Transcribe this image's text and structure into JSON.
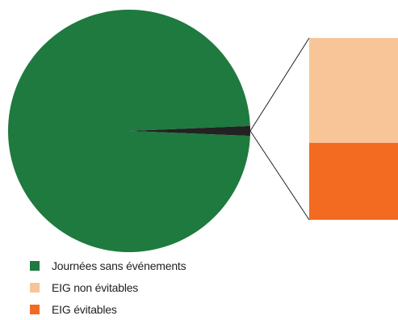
{
  "chart_data": {
    "type": "pie",
    "title": "",
    "categories": [
      "Journées sans événements",
      "EIG non évitables",
      "EIG évitables"
    ],
    "values": [
      98.7,
      0.75,
      0.55
    ],
    "colors": [
      "#1e7a3e",
      "#f7c597",
      "#f26b21"
    ],
    "sub_bar": {
      "categories": [
        "EIG non évitables",
        "EIG évitables"
      ],
      "values": [
        0.75,
        0.55
      ],
      "colors": [
        "#f7c597",
        "#f26b21"
      ]
    },
    "legend_position": "bottom-left",
    "exploded_slice_color": "#222222"
  },
  "legend": [
    {
      "label": "Journées sans événements",
      "color": "#1e7a3e"
    },
    {
      "label": "EIG non évitables",
      "color": "#f7c597"
    },
    {
      "label": "EIG évitables",
      "color": "#f26b21"
    }
  ]
}
